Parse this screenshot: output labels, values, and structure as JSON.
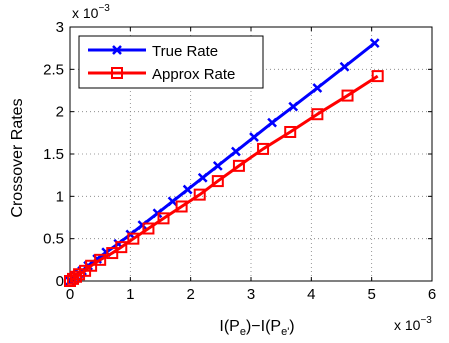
{
  "chart_data": {
    "type": "line",
    "ylabel": "Crossover Rates",
    "xlabel_main": "I(P",
    "xlabel_sub1": "e",
    "xlabel_mid": ")−I(P",
    "xlabel_sub2": "e'",
    "xlabel_end": ")",
    "x_multiplier": "x 10",
    "x_multiplier_exp": "−3",
    "y_multiplier": "x 10",
    "y_multiplier_exp": "−3",
    "xlim": [
      0,
      6
    ],
    "ylim": [
      0,
      3
    ],
    "xticks": [
      "0",
      "1",
      "2",
      "3",
      "4",
      "5",
      "6"
    ],
    "yticks": [
      "0",
      "0.5",
      "1",
      "1.5",
      "2",
      "2.5",
      "3"
    ],
    "grid": true,
    "legend_position": "top-left",
    "series": [
      {
        "name": "True Rate",
        "color": "#0000ff",
        "marker": "x",
        "x": [
          0.0,
          0.05,
          0.1,
          0.15,
          0.2,
          0.3,
          0.45,
          0.6,
          0.8,
          1.0,
          1.2,
          1.45,
          1.7,
          1.95,
          2.2,
          2.45,
          2.75,
          3.05,
          3.35,
          3.7,
          4.1,
          4.55,
          5.05
        ],
        "y": [
          0.0,
          0.03,
          0.06,
          0.09,
          0.12,
          0.18,
          0.26,
          0.34,
          0.44,
          0.55,
          0.66,
          0.8,
          0.94,
          1.08,
          1.22,
          1.36,
          1.53,
          1.7,
          1.87,
          2.06,
          2.28,
          2.53,
          2.81
        ]
      },
      {
        "name": "Approx Rate",
        "color": "#ff0000",
        "marker": "square",
        "x": [
          0.0,
          0.05,
          0.1,
          0.15,
          0.25,
          0.35,
          0.5,
          0.7,
          0.85,
          1.05,
          1.3,
          1.55,
          1.85,
          2.15,
          2.45,
          2.8,
          3.2,
          3.65,
          4.1,
          4.6,
          5.1
        ],
        "y": [
          0.0,
          0.025,
          0.05,
          0.08,
          0.12,
          0.18,
          0.25,
          0.33,
          0.4,
          0.5,
          0.62,
          0.74,
          0.88,
          1.02,
          1.18,
          1.36,
          1.56,
          1.76,
          1.97,
          2.19,
          2.42
        ]
      }
    ]
  }
}
